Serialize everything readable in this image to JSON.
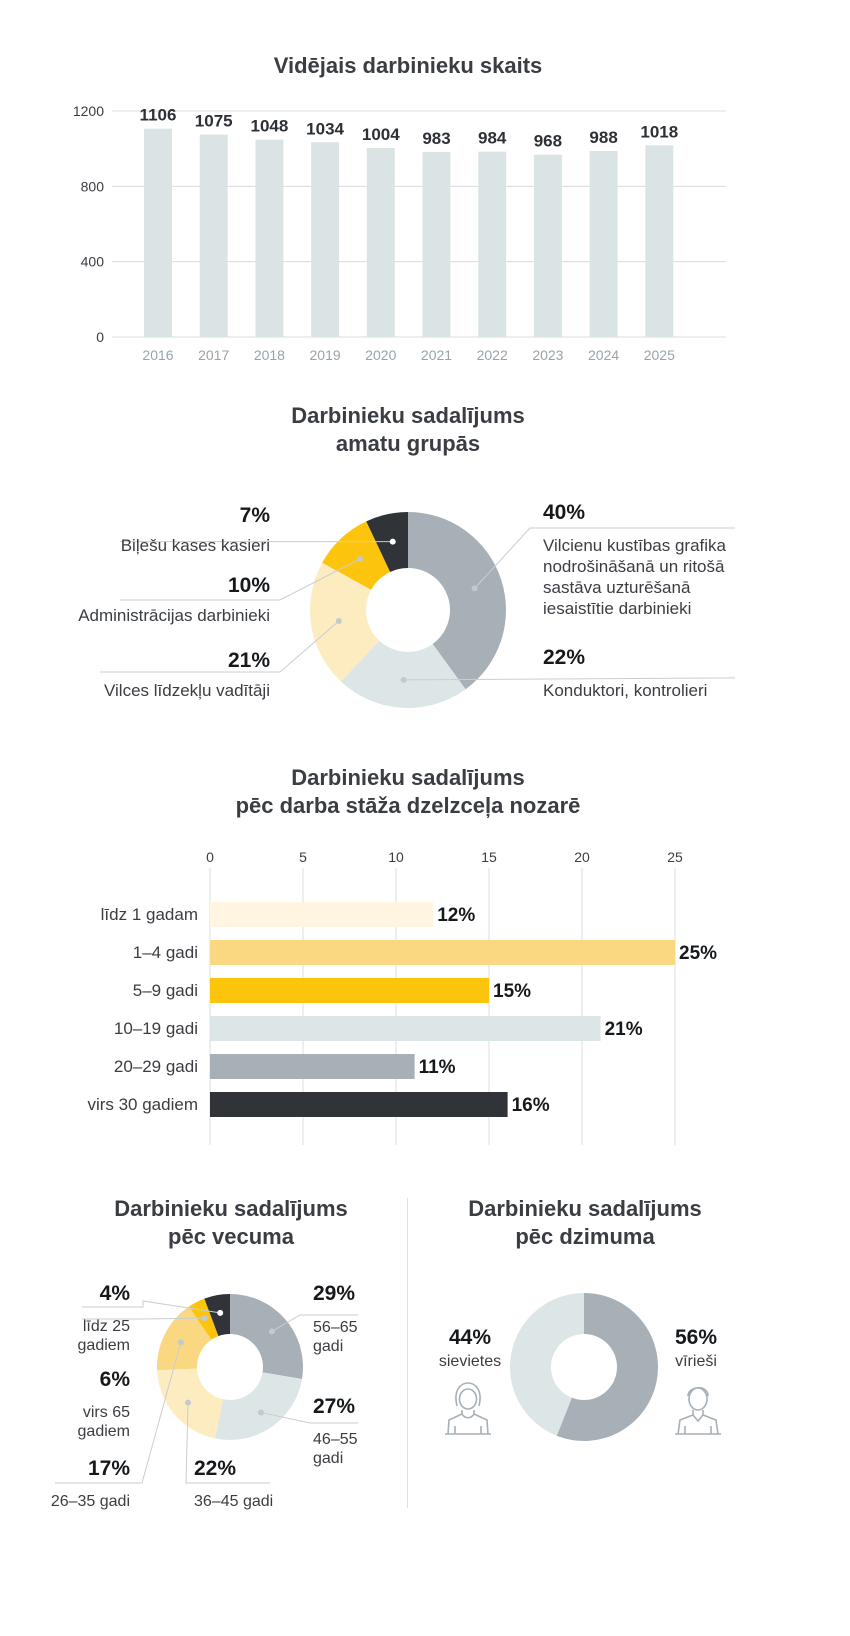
{
  "colors": {
    "bar": "#dbe4e5",
    "grid": "#d8dcdf",
    "slate": "#a7b0b7",
    "pale": "#dde6e7",
    "cream": "#fdecc0",
    "lightYellow": "#f9d881",
    "yellow": "#fdc40d",
    "dark": "#303438",
    "palest": "#fff5e0",
    "leader": "#c9cdd1"
  },
  "chart_data": [
    {
      "type": "bar",
      "title": "Vidējais darbinieku skaits",
      "categories": [
        "2016",
        "2017",
        "2018",
        "2019",
        "2020",
        "2021",
        "2022",
        "2023",
        "2024",
        "2025"
      ],
      "values": [
        1106,
        1075,
        1048,
        1034,
        1004,
        983,
        984,
        968,
        988,
        1018
      ],
      "yticks": [
        0,
        400,
        800,
        1200
      ],
      "ylim": [
        0,
        1200
      ]
    },
    {
      "type": "pie",
      "title_line1": "Darbinieku sadalījums",
      "title_line2": "amatu grupās",
      "slices": [
        {
          "pct": "40%",
          "value": 40,
          "label": "Vilcienu kustības grafika nodrošināšanā un ritošā sastāva uzturēšanā iesaistītie darbinieki",
          "color": "#a7b0b7"
        },
        {
          "pct": "22%",
          "value": 22,
          "label": "Konduktori, kontrolieri",
          "color": "#dde6e7"
        },
        {
          "pct": "21%",
          "value": 21,
          "label": "Vilces līdzekļu vadītāji",
          "color": "#fdecc0"
        },
        {
          "pct": "10%",
          "value": 10,
          "label": "Administrācijas darbinieki",
          "color": "#fdc40d"
        },
        {
          "pct": "7%",
          "value": 7,
          "label": "Biļešu kases kasieri",
          "color": "#303438"
        }
      ]
    },
    {
      "type": "bar",
      "orientation": "horizontal",
      "title_line1": "Darbinieku sadalījums",
      "title_line2": "pēc darba stāža dzelzceļa nozarē",
      "xticks": [
        0,
        5,
        10,
        15,
        20,
        25
      ],
      "xlim": [
        0,
        25
      ],
      "rows": [
        {
          "label": "līdz 1 gadam",
          "value": 12,
          "pct": "12%",
          "color": "#fff5e0"
        },
        {
          "label": "1–4 gadi",
          "value": 25,
          "pct": "25%",
          "color": "#f9d881"
        },
        {
          "label": "5–9 gadi",
          "value": 15,
          "pct": "15%",
          "color": "#fdc40d"
        },
        {
          "label": "10–19 gadi",
          "value": 21,
          "pct": "21%",
          "color": "#dde6e7"
        },
        {
          "label": "20–29 gadi",
          "value": 11,
          "pct": "11%",
          "color": "#a7b0b7"
        },
        {
          "label": "virs 30 gadiem",
          "value": 16,
          "pct": "16%",
          "color": "#303438"
        }
      ]
    },
    {
      "type": "pie",
      "title_line1": "Darbinieku sadalījums",
      "title_line2": "pēc vecuma",
      "slices": [
        {
          "pct": "29%",
          "value": 29,
          "label_line1": "56–65",
          "label_line2": "gadi",
          "color": "#a7b0b7"
        },
        {
          "pct": "27%",
          "value": 27,
          "label_line1": "46–55",
          "label_line2": "gadi",
          "color": "#dde6e7"
        },
        {
          "pct": "22%",
          "value": 22,
          "label_line1": "36–45 gadi",
          "label_line2": "",
          "color": "#fdecc0"
        },
        {
          "pct": "17%",
          "value": 17,
          "label_line1": "26–35 gadi",
          "label_line2": "",
          "color": "#f9d881"
        },
        {
          "pct": "4%",
          "value": 4,
          "label_line1": "līdz 25",
          "label_line2": "gadiem",
          "color": "#fdc40d"
        },
        {
          "pct": "6%",
          "value": 6,
          "label_line1": "virs 65",
          "label_line2": "gadiem",
          "color": "#303438"
        }
      ]
    },
    {
      "type": "pie",
      "title_line1": "Darbinieku sadalījums",
      "title_line2": "pēc dzimuma",
      "slices": [
        {
          "pct": "56%",
          "value": 56,
          "label": "vīrieši",
          "color": "#a7b0b7"
        },
        {
          "pct": "44%",
          "value": 44,
          "label": "sievietes",
          "color": "#dde6e7"
        }
      ]
    }
  ]
}
